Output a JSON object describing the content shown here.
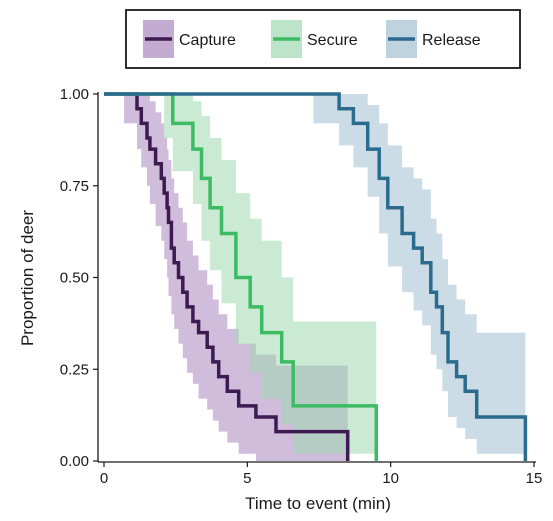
{
  "chart_data": {
    "type": "line",
    "subtype": "kaplan-meier step curves with confidence bands",
    "xlabel": "Time to event (min)",
    "ylabel": "Proportion of deer",
    "xlim": [
      0,
      15
    ],
    "ylim": [
      0,
      1
    ],
    "x_ticks": [
      0,
      5,
      10,
      15
    ],
    "y_ticks": [
      0,
      0.25,
      0.5,
      0.75,
      1.0
    ],
    "x_tick_labels": [
      "0",
      "5",
      "10",
      "15"
    ],
    "y_tick_labels": [
      "0.00",
      "0.25",
      "0.50",
      "0.75",
      "1.00"
    ],
    "grid": false,
    "legend_position": "top",
    "series": [
      {
        "name": "Capture",
        "color": "#3e1a52",
        "band_color": "#a987bd",
        "x": [
          0.7,
          1.15,
          1.3,
          1.5,
          1.6,
          1.8,
          2.0,
          2.1,
          2.2,
          2.25,
          2.35,
          2.45,
          2.6,
          2.75,
          2.9,
          3.1,
          3.3,
          3.6,
          3.8,
          4.0,
          4.3,
          4.7,
          5.3,
          6.0,
          8.5
        ],
        "y": [
          1.0,
          0.96,
          0.92,
          0.88,
          0.85,
          0.81,
          0.77,
          0.73,
          0.69,
          0.65,
          0.58,
          0.54,
          0.5,
          0.46,
          0.42,
          0.38,
          0.35,
          0.31,
          0.27,
          0.23,
          0.19,
          0.15,
          0.12,
          0.08,
          0.04
        ],
        "y_end": 0.0,
        "lower": [
          0.92,
          0.85,
          0.8,
          0.75,
          0.7,
          0.64,
          0.6,
          0.55,
          0.5,
          0.45,
          0.4,
          0.36,
          0.32,
          0.28,
          0.24,
          0.21,
          0.17,
          0.14,
          0.11,
          0.08,
          0.05,
          0.02,
          0.0,
          0.0,
          0.0
        ],
        "upper": [
          1.0,
          1.0,
          1.0,
          1.0,
          0.98,
          0.95,
          0.92,
          0.88,
          0.85,
          0.82,
          0.77,
          0.73,
          0.69,
          0.65,
          0.6,
          0.56,
          0.52,
          0.48,
          0.44,
          0.4,
          0.36,
          0.32,
          0.29,
          0.26,
          0.26
        ]
      },
      {
        "name": "Secure",
        "color": "#3dbb62",
        "band_color": "#9ed9b0",
        "x": [
          2.1,
          2.4,
          3.1,
          3.4,
          3.7,
          4.1,
          4.6,
          5.1,
          5.5,
          6.2,
          6.6,
          9.5
        ],
        "y": [
          1.0,
          0.92,
          0.85,
          0.77,
          0.69,
          0.62,
          0.5,
          0.42,
          0.35,
          0.27,
          0.15,
          0.04
        ],
        "y_end": 0.0,
        "lower": [
          0.88,
          0.79,
          0.7,
          0.6,
          0.52,
          0.43,
          0.32,
          0.24,
          0.17,
          0.1,
          0.02,
          0.0
        ],
        "upper": [
          1.0,
          1.0,
          0.98,
          0.94,
          0.88,
          0.82,
          0.73,
          0.66,
          0.6,
          0.5,
          0.38,
          0.34
        ]
      },
      {
        "name": "Release",
        "color": "#2b6b8d",
        "band_color": "#a2bfd1",
        "x": [
          7.3,
          8.2,
          8.7,
          9.2,
          9.6,
          9.9,
          10.4,
          10.8,
          11.1,
          11.4,
          11.6,
          11.8,
          12.0,
          12.3,
          12.6,
          13.0,
          14.7
        ],
        "y": [
          1.0,
          0.96,
          0.92,
          0.85,
          0.77,
          0.69,
          0.62,
          0.58,
          0.54,
          0.46,
          0.42,
          0.35,
          0.27,
          0.23,
          0.19,
          0.12,
          0.04
        ],
        "y_end": 0.0,
        "lower": [
          0.92,
          0.86,
          0.8,
          0.72,
          0.62,
          0.53,
          0.46,
          0.41,
          0.37,
          0.29,
          0.25,
          0.19,
          0.12,
          0.09,
          0.06,
          0.02,
          0.0
        ],
        "upper": [
          1.0,
          1.0,
          1.0,
          0.97,
          0.92,
          0.86,
          0.8,
          0.77,
          0.74,
          0.66,
          0.62,
          0.55,
          0.48,
          0.44,
          0.4,
          0.35,
          0.35
        ]
      }
    ]
  }
}
